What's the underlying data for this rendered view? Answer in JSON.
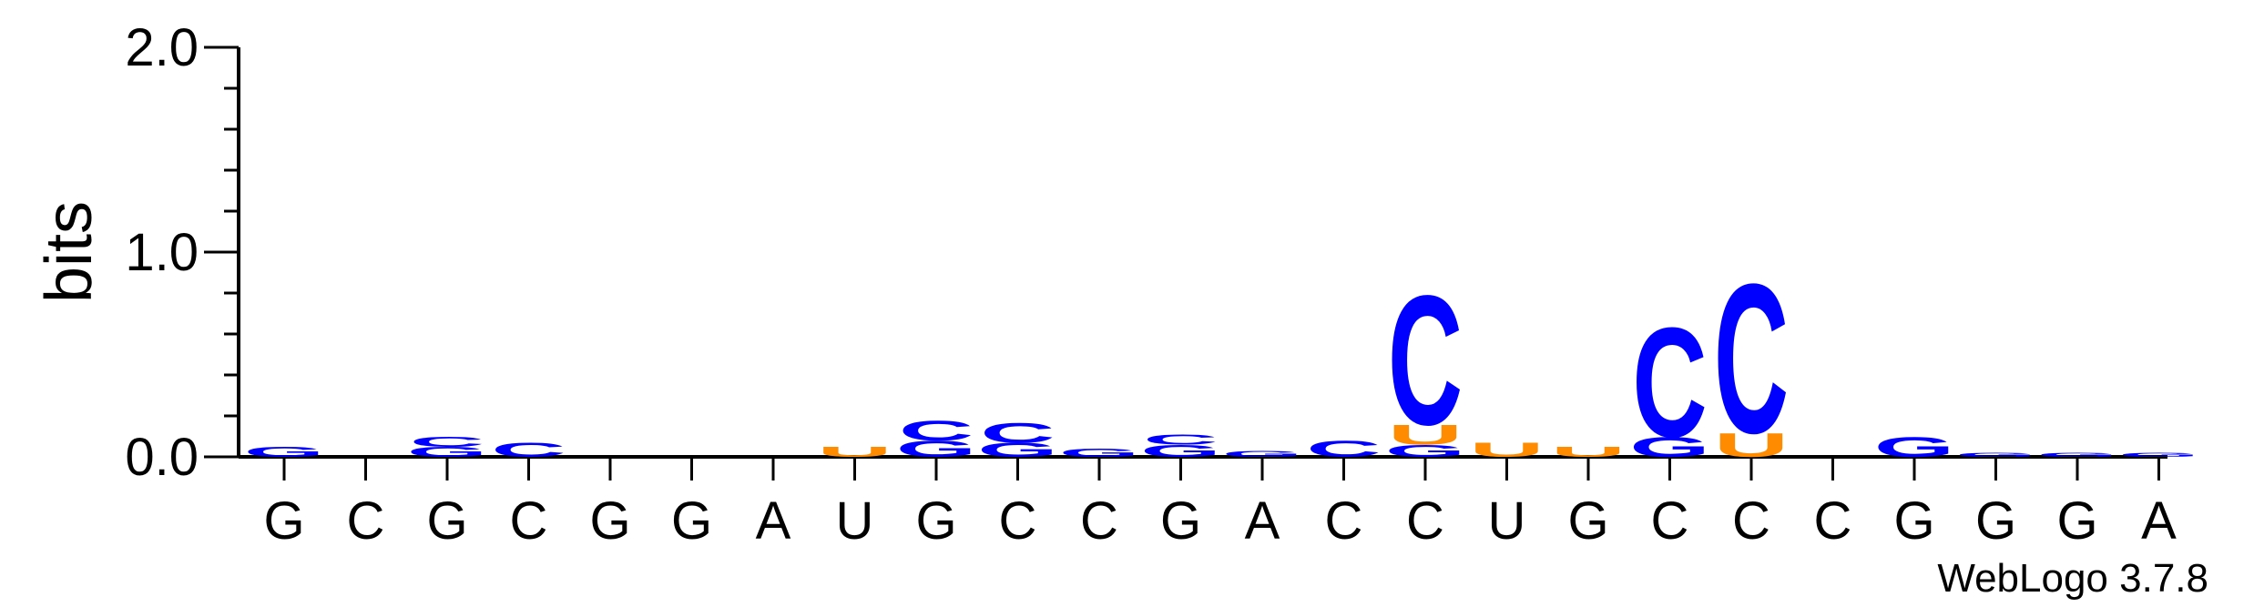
{
  "chart_data": {
    "type": "sequence-logo",
    "ylabel": "bits",
    "ylim": [
      0,
      2.0
    ],
    "yticks": [
      "0.0",
      "1.0",
      "2.0"
    ],
    "sequence": [
      "G",
      "C",
      "G",
      "C",
      "G",
      "G",
      "A",
      "U",
      "G",
      "C",
      "C",
      "G",
      "A",
      "C",
      "C",
      "U",
      "G",
      "C",
      "C",
      "C",
      "G",
      "G",
      "G",
      "A"
    ],
    "colors": {
      "C": "#0000ff",
      "G": "#0000ff",
      "U": "#ff8c00",
      "A": "#ff0000"
    },
    "stacks": [
      [
        {
          "letter": "G",
          "bits": 0.05
        }
      ],
      [],
      [
        {
          "letter": "G",
          "bits": 0.05
        },
        {
          "letter": "C",
          "bits": 0.05
        }
      ],
      [
        {
          "letter": "C",
          "bits": 0.07
        }
      ],
      [],
      [],
      [],
      [
        {
          "letter": "U",
          "bits": 0.05
        }
      ],
      [
        {
          "letter": "G",
          "bits": 0.08
        },
        {
          "letter": "C",
          "bits": 0.1
        }
      ],
      [
        {
          "letter": "G",
          "bits": 0.07
        },
        {
          "letter": "C",
          "bits": 0.1
        }
      ],
      [
        {
          "letter": "G",
          "bits": 0.04
        }
      ],
      [
        {
          "letter": "G",
          "bits": 0.06
        },
        {
          "letter": "C",
          "bits": 0.05
        }
      ],
      [
        {
          "letter": "G",
          "bits": 0.03
        }
      ],
      [
        {
          "letter": "C",
          "bits": 0.08
        }
      ],
      [
        {
          "letter": "G",
          "bits": 0.06
        },
        {
          "letter": "U",
          "bits": 0.1
        },
        {
          "letter": "C",
          "bits": 0.65
        }
      ],
      [
        {
          "letter": "U",
          "bits": 0.07
        }
      ],
      [
        {
          "letter": "U",
          "bits": 0.05
        }
      ],
      [
        {
          "letter": "G",
          "bits": 0.1
        },
        {
          "letter": "C",
          "bits": 0.55
        }
      ],
      [
        {
          "letter": "U",
          "bits": 0.12
        },
        {
          "letter": "C",
          "bits": 0.75
        }
      ],
      [],
      [
        {
          "letter": "G",
          "bits": 0.1
        }
      ],
      [
        {
          "letter": "G",
          "bits": 0.02
        }
      ],
      [
        {
          "letter": "G",
          "bits": 0.02
        }
      ],
      [
        {
          "letter": "G",
          "bits": 0.02
        }
      ]
    ]
  },
  "credit": "WebLogo 3.7.8"
}
